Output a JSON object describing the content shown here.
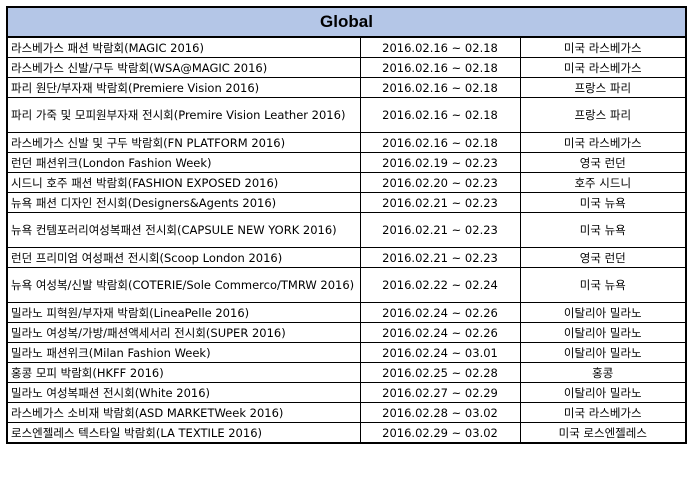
{
  "title": "Global",
  "rows": [
    {
      "name": "라스베가스 패션 박람회(MAGIC 2016)",
      "date": "2016.02.16 ~ 02.18",
      "location": "미국 라스베가스"
    },
    {
      "name": "라스베가스 신발/구두 박람회(WSA@MAGIC 2016)",
      "date": "2016.02.16 ~ 02.18",
      "location": "미국 라스베가스"
    },
    {
      "name": "파리 원단/부자재 박람회(Premiere Vision 2016)",
      "date": "2016.02.16 ~ 02.18",
      "location": "프랑스 파리"
    },
    {
      "name": "파리 가죽 및 모피원부자재 전시회(Premire Vision Leather 2016)",
      "date": "2016.02.16 ~ 02.18",
      "location": "프랑스 파리"
    },
    {
      "name": "라스베가스 신발 및 구두 박람회(FN PLATFORM 2016)",
      "date": "2016.02.16 ~ 02.18",
      "location": "미국 라스베가스"
    },
    {
      "name": "런던 패션위크(London Fashion Week)",
      "date": "2016.02.19 ~ 02.23",
      "location": "영국 런던"
    },
    {
      "name": "시드니 호주 패션 박람회(FASHION EXPOSED 2016)",
      "date": "2016.02.20 ~ 02.23",
      "location": "호주 시드니"
    },
    {
      "name": "뉴욕 패션 디자인 전시회(Designers&Agents 2016)",
      "date": "2016.02.21 ~ 02.23",
      "location": "미국 뉴욕"
    },
    {
      "name": "뉴욕 컨템포러리여성복패션 전시회(CAPSULE NEW YORK 2016)",
      "date": "2016.02.21 ~ 02.23",
      "location": "미국 뉴욕"
    },
    {
      "name": "런던 프리미엄 여성패션 전시회(Scoop London 2016)",
      "date": "2016.02.21 ~ 02.23",
      "location": "영국 런던"
    },
    {
      "name": "뉴욕 여성복/신발 박람회(COTERIE/Sole Commerco/TMRW 2016)",
      "date": "2016.02.22 ~ 02.24",
      "location": "미국 뉴욕"
    },
    {
      "name": "밀라노 피혁원/부자재 박람회(LineaPelle 2016)",
      "date": "2016.02.24 ~ 02.26",
      "location": "이탈리아 밀라노"
    },
    {
      "name": "밀라노 여성복/가방/패션액세서리 전시회(SUPER 2016)",
      "date": "2016.02.24 ~ 02.26",
      "location": "이탈리아 밀라노"
    },
    {
      "name": "밀라노 패션위크(Milan Fashion Week)",
      "date": "2016.02.24 ~ 03.01",
      "location": "이탈리아 밀라노"
    },
    {
      "name": "홍콩 모피 박람회(HKFF 2016)",
      "date": "2016.02.25 ~ 02.28",
      "location": "홍콩"
    },
    {
      "name": "밀라노 여성복패션 전시회(White 2016)",
      "date": "2016.02.27 ~ 02.29",
      "location": "이탈리아 밀라노"
    },
    {
      "name": "라스베가스 소비재 박람회(ASD MARKETWeek 2016)",
      "date": "2016.02.28 ~ 03.02",
      "location": "미국 라스베가스"
    },
    {
      "name": "로스엔젤레스 텍스타일 박람회(LA TEXTILE 2016)",
      "date": "2016.02.29 ~ 03.02",
      "location": "미국 로스엔젤레스"
    }
  ]
}
